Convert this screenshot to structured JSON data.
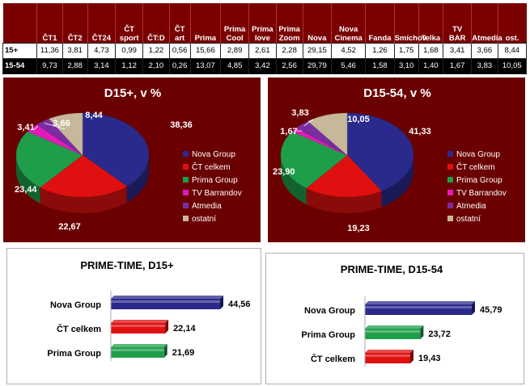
{
  "table": {
    "columns": [
      "ČT1",
      "ČT2",
      "ČT24",
      "ČT sport",
      "ČT:D",
      "ČT art",
      "Prima",
      "Prima Cool",
      "Prima love",
      "Prima Zoom",
      "Nova",
      "Nova Cinema",
      "Fanda",
      "Smíchov",
      "Telka",
      "TV BAR",
      "Atmedia",
      "ost."
    ],
    "rows": [
      {
        "label": "15+",
        "values": [
          "11,36",
          "3,81",
          "4,73",
          "0,99",
          "1,22",
          "0,56",
          "15,66",
          "2,89",
          "2,61",
          "2,28",
          "29,15",
          "4,52",
          "1,26",
          "1,75",
          "1,68",
          "3,41",
          "3,66",
          "8,44"
        ]
      },
      {
        "label": "15-54",
        "values": [
          "9,73",
          "2,88",
          "3,14",
          "1,12",
          "2,10",
          "0,26",
          "13,07",
          "4,85",
          "3,42",
          "2,56",
          "29,79",
          "5,46",
          "1,58",
          "3,10",
          "1,40",
          "1,67",
          "3,83",
          "10,05"
        ]
      }
    ]
  },
  "chart_data": [
    {
      "type": "pie",
      "title": "D15+, v %",
      "labels": [
        "Nova Group",
        "ČT celkem",
        "Prima Group",
        "TV Barrandov",
        "Atmedia",
        "ostatní"
      ],
      "values": [
        38.36,
        22.67,
        23.44,
        3.41,
        3.66,
        8.44
      ],
      "value_labels": [
        "38,36",
        "22,67",
        "23,44",
        "3,41",
        "3,66",
        "8,44"
      ],
      "colors": [
        "#2a2a8c",
        "#e01010",
        "#1f9e4a",
        "#e21bb8",
        "#7a2da0",
        "#c8b89a"
      ],
      "legend": "right"
    },
    {
      "type": "pie",
      "title": "D15-54, v %",
      "labels": [
        "Nova Group",
        "ČT celkem",
        "Prima Group",
        "TV Barrandov",
        "Atmedia",
        "ostatní"
      ],
      "values": [
        41.33,
        19.23,
        23.9,
        1.67,
        3.83,
        10.05
      ],
      "value_labels": [
        "41,33",
        "19,23",
        "23,90",
        "1,67",
        "3,83",
        "10,05"
      ],
      "colors": [
        "#2a2a8c",
        "#e01010",
        "#1f9e4a",
        "#e21bb8",
        "#7a2da0",
        "#c8b89a"
      ],
      "legend": "right"
    },
    {
      "type": "bar",
      "orientation": "horizontal",
      "title": "PRIME-TIME, D15+",
      "categories": [
        "Nova Group",
        "ČT celkem",
        "Prima Group"
      ],
      "values": [
        44.56,
        22.14,
        21.69
      ],
      "value_labels": [
        "44,56",
        "22,14",
        "21,69"
      ],
      "colors": [
        "#2a2a8c",
        "#e01010",
        "#1f9e4a"
      ]
    },
    {
      "type": "bar",
      "orientation": "horizontal",
      "title": "PRIME-TIME, D15-54",
      "categories": [
        "Nova Group",
        "Prima Group",
        "ČT celkem"
      ],
      "values": [
        45.79,
        23.72,
        19.43
      ],
      "value_labels": [
        "45,79",
        "23,72",
        "19,43"
      ],
      "colors": [
        "#2a2a8c",
        "#1f9e4a",
        "#e01010"
      ]
    }
  ]
}
